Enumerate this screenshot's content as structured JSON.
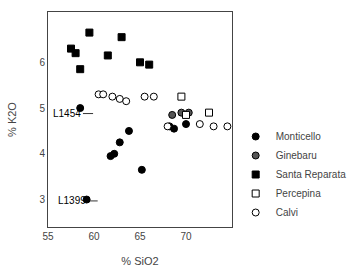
{
  "chart_data": {
    "type": "scatter",
    "xlabel": "% SiO2",
    "ylabel": "% K2O",
    "xlim": [
      55,
      75
    ],
    "ylim": [
      2.4,
      7.1
    ],
    "xticks": [
      55,
      60,
      65,
      70
    ],
    "yticks": [
      3,
      4,
      5,
      6
    ],
    "grid": false,
    "legend": "lower right",
    "series": [
      {
        "name": "Monticello",
        "marker": "circle",
        "color": "#000000",
        "x": [
          58.5,
          61.8,
          62.2,
          62.8,
          63.8,
          65.2,
          68.2,
          68.7,
          70.0,
          59.2
        ],
        "values": [
          5.0,
          3.95,
          4.0,
          4.25,
          4.5,
          3.65,
          4.6,
          4.55,
          4.65,
          3.0
        ]
      },
      {
        "name": "Ginebaru",
        "marker": "circle",
        "color": "#555555",
        "x": [
          68.5,
          69.5,
          70.3
        ],
        "values": [
          4.85,
          4.9,
          4.9
        ]
      },
      {
        "name": "Santa Reparata",
        "marker": "square",
        "color": "#000000",
        "x": [
          57.5,
          58.0,
          58.5,
          59.5,
          61.5,
          63.0,
          65.0,
          66.0
        ],
        "values": [
          6.3,
          6.2,
          5.85,
          6.65,
          6.15,
          6.55,
          6.0,
          5.95
        ]
      },
      {
        "name": "Percepina",
        "marker": "square",
        "color": "#ffffff",
        "x": [
          69.5,
          70.0,
          72.5
        ],
        "values": [
          5.25,
          4.85,
          4.9
        ]
      },
      {
        "name": "Calvi",
        "marker": "circle",
        "color": "#ffffff",
        "x": [
          60.5,
          61.0,
          62.0,
          62.8,
          63.5,
          65.5,
          66.5,
          68.0,
          71.5,
          73.0,
          74.5
        ],
        "values": [
          5.3,
          5.3,
          5.25,
          5.2,
          5.15,
          5.25,
          5.25,
          4.6,
          4.65,
          4.6,
          4.6
        ]
      }
    ],
    "annotations": [
      {
        "text": "L1454",
        "xytext": [
          58.8,
          4.88
        ],
        "xy": [
          59.9,
          4.88
        ]
      },
      {
        "text": "L1399",
        "xytext": [
          59.4,
          2.97
        ],
        "xy": [
          60.4,
          2.97
        ]
      }
    ]
  }
}
